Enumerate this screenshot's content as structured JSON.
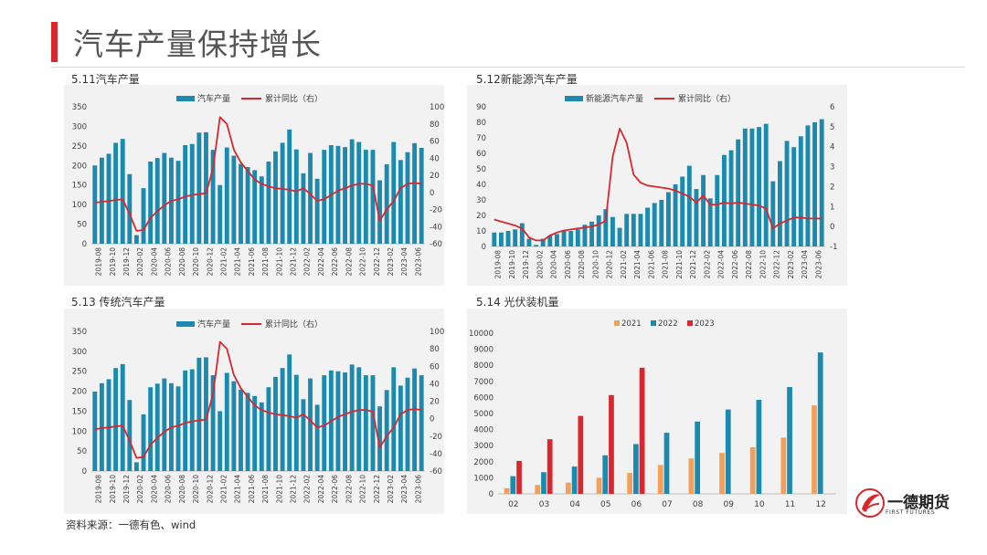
{
  "header": {
    "title": "汽车产量保持增长"
  },
  "source": "资料来源：一德有色、wind",
  "logo": {
    "name": "一德期货",
    "sub": "FIRST FUTURES"
  },
  "colors": {
    "bar": "#1c8aae",
    "line": "#d7282f",
    "y2021": "#f0a05a",
    "y2022": "#1c8aae",
    "y2023": "#d7282f",
    "panel_bg": "#f2f2f2"
  },
  "chart_data": [
    {
      "id": "auto",
      "type": "bar+line",
      "title": "5.11汽车产量",
      "legend": [
        "汽车产量",
        "累计同比（右）"
      ],
      "x_ticks": [
        "2019-08",
        "2019-10",
        "2019-12",
        "2020-02",
        "2020-04",
        "2020-06",
        "2020-08",
        "2020-10",
        "2020-12",
        "2021-02",
        "2021-04",
        "2021-06",
        "2021-08",
        "2021-10",
        "2021-12",
        "2022-02",
        "2022-04",
        "2022-06",
        "2022-08",
        "2022-10",
        "2022-12",
        "2023-02",
        "2023-04",
        "2023-06"
      ],
      "ylim_left": [
        0,
        350
      ],
      "yticks_left": [
        0,
        50,
        100,
        150,
        200,
        250,
        300,
        350
      ],
      "ylim_right": [
        -60,
        100
      ],
      "yticks_right": [
        -60,
        -40,
        -20,
        0,
        20,
        40,
        60,
        80,
        100
      ],
      "bars": [
        200,
        220,
        230,
        258,
        268,
        178,
        22,
        142,
        210,
        219,
        232,
        220,
        212,
        252,
        255,
        284,
        285,
        240,
        150,
        246,
        225,
        204,
        196,
        188,
        172,
        210,
        236,
        258,
        292,
        241,
        180,
        232,
        166,
        240,
        252,
        250,
        247,
        267,
        260,
        240,
        240,
        162,
        203,
        260,
        214,
        234,
        257,
        245
      ],
      "line": [
        -12,
        -11,
        -10,
        -9,
        -8,
        -25,
        -45,
        -44,
        -30,
        -22,
        -15,
        -10,
        -8,
        -5,
        -3,
        -2,
        -1,
        28,
        88,
        80,
        50,
        35,
        25,
        15,
        10,
        7,
        5,
        4,
        3,
        1,
        5,
        -2,
        -10,
        -8,
        -3,
        2,
        5,
        8,
        10,
        10,
        8,
        -33,
        -20,
        -10,
        5,
        10,
        11,
        10
      ]
    },
    {
      "id": "nev",
      "type": "bar+line",
      "title": "5.12新能源汽车产量",
      "legend": [
        "新能源汽车产量",
        "累计同比（右）"
      ],
      "x_ticks": [
        "2019-08",
        "2019-10",
        "2019-12",
        "2020-02",
        "2020-04",
        "2020-06",
        "2020-08",
        "2020-10",
        "2020-12",
        "2021-02",
        "2021-04",
        "2021-06",
        "2021-08",
        "2021-10",
        "2021-12",
        "2022-02",
        "2022-04",
        "2022-06",
        "2022-08",
        "2022-10",
        "2022-12",
        "2023-02",
        "2023-04",
        "2023-06"
      ],
      "ylim_left": [
        0,
        90
      ],
      "yticks_left": [
        0,
        10,
        20,
        30,
        40,
        50,
        60,
        70,
        80,
        90
      ],
      "ylim_right": [
        -1,
        6
      ],
      "yticks_right": [
        -1,
        0,
        1,
        2,
        3,
        4,
        5,
        6
      ],
      "bars": [
        9,
        9,
        10,
        11,
        15,
        5,
        1,
        5,
        7,
        8,
        10,
        10,
        11,
        14,
        16,
        20,
        24,
        19,
        12,
        21,
        21,
        21,
        25,
        28,
        30,
        35,
        40,
        45,
        52,
        37,
        46,
        31,
        46,
        59,
        62,
        69,
        76,
        76,
        77,
        79,
        42,
        55,
        68,
        64,
        71,
        78,
        80,
        82
      ],
      "line": [
        0.35,
        0.25,
        0.15,
        0.05,
        -0.1,
        -0.55,
        -0.7,
        -0.7,
        -0.45,
        -0.3,
        -0.2,
        -0.15,
        -0.1,
        -0.05,
        0.0,
        0.1,
        0.3,
        3.5,
        4.9,
        4.2,
        2.6,
        2.2,
        2.05,
        2.0,
        1.95,
        1.9,
        1.8,
        1.65,
        1.5,
        1.2,
        1.55,
        1.1,
        1.1,
        1.2,
        1.15,
        1.2,
        1.15,
        1.1,
        1.05,
        0.9,
        -0.1,
        0.15,
        0.3,
        0.45,
        0.45,
        0.4,
        0.4,
        0.4
      ]
    },
    {
      "id": "ice",
      "type": "bar+line",
      "title": "5.13 传统汽车产量",
      "legend": [
        "汽车产量",
        "累计同比（右）"
      ],
      "x_ticks": [
        "2019-08",
        "2019-10",
        "2019-12",
        "2020-02",
        "2020-04",
        "2020-06",
        "2020-08",
        "2020-10",
        "2020-12",
        "2021-02",
        "2021-04",
        "2021-06",
        "2021-08",
        "2021-10",
        "2021-12",
        "2022-02",
        "2022-04",
        "2022-06",
        "2022-08",
        "2022-10",
        "2022-12",
        "2023-02",
        "2023-04",
        "2023-06"
      ],
      "ylim_left": [
        0,
        350
      ],
      "yticks_left": [
        0,
        50,
        100,
        150,
        200,
        250,
        300,
        350
      ],
      "ylim_right": [
        -60,
        100
      ],
      "yticks_right": [
        -60,
        -40,
        -20,
        0,
        20,
        40,
        60,
        80,
        100
      ],
      "bars": [
        199,
        220,
        230,
        258,
        268,
        178,
        22,
        142,
        210,
        219,
        232,
        220,
        212,
        252,
        255,
        284,
        285,
        240,
        150,
        246,
        225,
        204,
        196,
        188,
        172,
        210,
        236,
        258,
        292,
        241,
        180,
        232,
        166,
        240,
        252,
        250,
        247,
        267,
        260,
        240,
        240,
        162,
        203,
        260,
        214,
        234,
        257,
        240
      ],
      "line": [
        -12,
        -11,
        -10,
        -9,
        -8,
        -25,
        -45,
        -44,
        -30,
        -22,
        -15,
        -10,
        -8,
        -5,
        -3,
        -2,
        -1,
        28,
        88,
        80,
        50,
        35,
        25,
        15,
        10,
        7,
        5,
        4,
        3,
        1,
        5,
        -2,
        -10,
        -8,
        -3,
        2,
        5,
        8,
        10,
        10,
        8,
        -33,
        -20,
        -10,
        5,
        10,
        11,
        10
      ]
    },
    {
      "id": "pv",
      "type": "bar",
      "title": "5.14 光伏装机量",
      "categories": [
        "02",
        "03",
        "04",
        "05",
        "06",
        "07",
        "08",
        "09",
        "10",
        "11",
        "12"
      ],
      "ylim": [
        0,
        10000
      ],
      "yticks": [
        0,
        1000,
        2000,
        3000,
        4000,
        5000,
        6000,
        7000,
        8000,
        9000,
        10000
      ],
      "series": [
        {
          "name": "2021",
          "values": [
            350,
            550,
            700,
            1000,
            1300,
            1800,
            2200,
            2550,
            2900,
            3500,
            5500
          ]
        },
        {
          "name": "2022",
          "values": [
            1100,
            1350,
            1700,
            2400,
            3100,
            3800,
            4500,
            5250,
            5850,
            6650,
            8800
          ]
        },
        {
          "name": "2023",
          "values": [
            2050,
            3400,
            4850,
            6150,
            7850,
            null,
            null,
            null,
            null,
            null,
            null
          ]
        }
      ]
    }
  ]
}
